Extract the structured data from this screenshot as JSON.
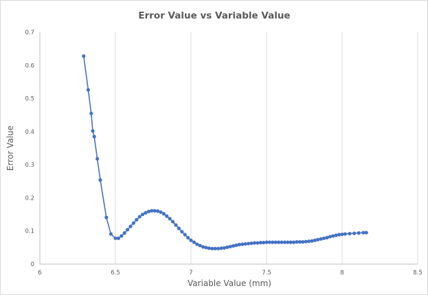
{
  "chart_data": {
    "type": "scatter",
    "title": "Error Value vs Variable Value",
    "xlabel": "Variable Value (mm)",
    "ylabel": "Error Value",
    "xlim": [
      6,
      8.5
    ],
    "ylim": [
      0,
      0.7
    ],
    "x_ticks": [
      "6",
      "6.5",
      "7",
      "7.5",
      "8",
      "8.5"
    ],
    "y_ticks": [
      "0",
      "0.1",
      "0.2",
      "0.3",
      "0.4",
      "0.5",
      "0.6",
      "0.7"
    ],
    "grid": "vertical",
    "legend": "none",
    "series": [
      {
        "color": "#4472c4",
        "marker": "circle",
        "line": true,
        "points": [
          [
            6.29,
            0.628
          ],
          [
            6.32,
            0.526
          ],
          [
            6.34,
            0.455
          ],
          [
            6.35,
            0.402
          ],
          [
            6.36,
            0.385
          ],
          [
            6.38,
            0.318
          ],
          [
            6.4,
            0.254
          ],
          [
            6.44,
            0.141
          ],
          [
            6.47,
            0.091
          ],
          [
            6.5,
            0.078
          ],
          [
            6.52,
            0.078
          ],
          [
            6.54,
            0.085
          ],
          [
            6.56,
            0.094
          ],
          [
            6.58,
            0.104
          ],
          [
            6.6,
            0.114
          ],
          [
            6.62,
            0.124
          ],
          [
            6.64,
            0.134
          ],
          [
            6.66,
            0.143
          ],
          [
            6.68,
            0.15
          ],
          [
            6.7,
            0.155
          ],
          [
            6.72,
            0.159
          ],
          [
            6.74,
            0.161
          ],
          [
            6.76,
            0.161
          ],
          [
            6.78,
            0.16
          ],
          [
            6.8,
            0.157
          ],
          [
            6.82,
            0.152
          ],
          [
            6.84,
            0.145
          ],
          [
            6.86,
            0.137
          ],
          [
            6.88,
            0.128
          ],
          [
            6.9,
            0.118
          ],
          [
            6.92,
            0.108
          ],
          [
            6.94,
            0.098
          ],
          [
            6.96,
            0.089
          ],
          [
            6.98,
            0.08
          ],
          [
            7.0,
            0.072
          ],
          [
            7.02,
            0.066
          ],
          [
            7.04,
            0.06
          ],
          [
            7.06,
            0.056
          ],
          [
            7.08,
            0.052
          ],
          [
            7.1,
            0.05
          ],
          [
            7.12,
            0.048
          ],
          [
            7.14,
            0.047
          ],
          [
            7.16,
            0.047
          ],
          [
            7.18,
            0.047
          ],
          [
            7.2,
            0.048
          ],
          [
            7.22,
            0.049
          ],
          [
            7.24,
            0.051
          ],
          [
            7.26,
            0.053
          ],
          [
            7.28,
            0.055
          ],
          [
            7.3,
            0.057
          ],
          [
            7.32,
            0.059
          ],
          [
            7.34,
            0.06
          ],
          [
            7.36,
            0.061
          ],
          [
            7.38,
            0.062
          ],
          [
            7.4,
            0.063
          ],
          [
            7.42,
            0.064
          ],
          [
            7.44,
            0.064
          ],
          [
            7.46,
            0.065
          ],
          [
            7.48,
            0.065
          ],
          [
            7.5,
            0.066
          ],
          [
            7.52,
            0.066
          ],
          [
            7.54,
            0.066
          ],
          [
            7.56,
            0.066
          ],
          [
            7.58,
            0.066
          ],
          [
            7.6,
            0.066
          ],
          [
            7.62,
            0.066
          ],
          [
            7.64,
            0.066
          ],
          [
            7.66,
            0.066
          ],
          [
            7.68,
            0.066
          ],
          [
            7.7,
            0.067
          ],
          [
            7.72,
            0.067
          ],
          [
            7.74,
            0.067
          ],
          [
            7.76,
            0.068
          ],
          [
            7.78,
            0.069
          ],
          [
            7.8,
            0.07
          ],
          [
            7.82,
            0.072
          ],
          [
            7.84,
            0.074
          ],
          [
            7.86,
            0.076
          ],
          [
            7.88,
            0.078
          ],
          [
            7.9,
            0.08
          ],
          [
            7.92,
            0.083
          ],
          [
            7.94,
            0.085
          ],
          [
            7.96,
            0.087
          ],
          [
            7.98,
            0.089
          ],
          [
            8.0,
            0.09
          ],
          [
            8.02,
            0.091
          ],
          [
            8.05,
            0.092
          ],
          [
            8.08,
            0.093
          ],
          [
            8.11,
            0.094
          ],
          [
            8.14,
            0.095
          ],
          [
            8.16,
            0.095
          ]
        ]
      }
    ]
  }
}
